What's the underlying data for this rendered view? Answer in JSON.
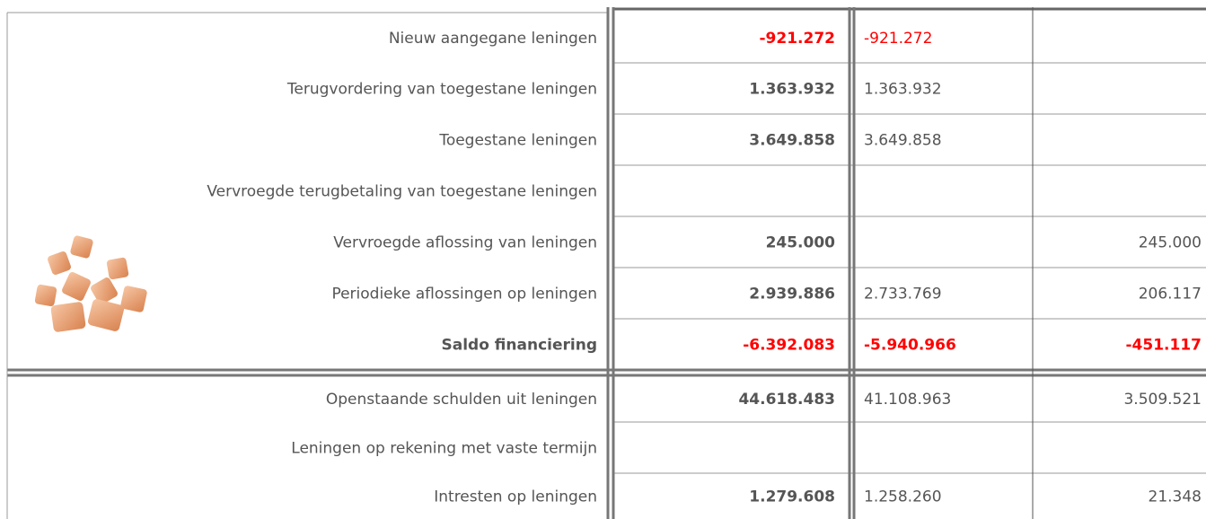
{
  "table": {
    "rows": [
      [
        "Nieuw aangegane leningen",
        "-921.272",
        "-921.272",
        null
      ],
      [
        "Terugvordering van toegestane leningen",
        "1.363.932",
        "1.363.932",
        null
      ],
      [
        "Toegestane leningen",
        "3.649.858",
        "3.649.858",
        null
      ],
      [
        "Vervroegde terugbetaling van toegestane leningen",
        null,
        null,
        null
      ],
      [
        "Vervroegde aflossing van leningen",
        "245.000",
        null,
        "245.000"
      ],
      [
        "Periodieke aflossingen op leningen",
        "2.939.886",
        "2.733.769",
        "206.117"
      ],
      [
        "Saldo financiering",
        "-6.392.083",
        "-5.940.966",
        "-451.117"
      ],
      [
        "Openstaande schulden uit leningen",
        "44.618.483",
        "41.108.963",
        "3.509.521"
      ],
      [
        "Leningen op rekening met vaste termijn",
        null,
        null,
        null
      ],
      [
        "Intresten op leningen",
        "1.279.608",
        "1.258.260",
        "21.348"
      ]
    ]
  }
}
